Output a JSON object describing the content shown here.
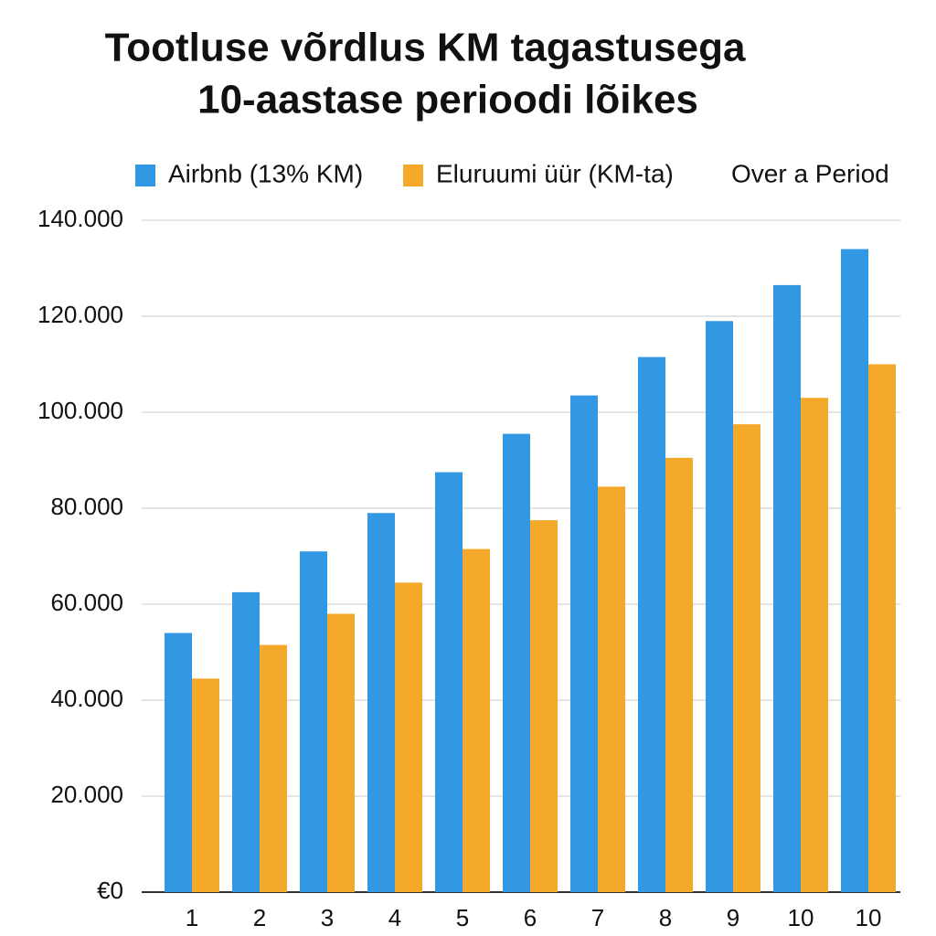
{
  "chart_data": {
    "type": "bar",
    "title": [
      "Tootluse võrdlus KM tagastusega",
      "10-aastase perioodi lõikes"
    ],
    "legend_note": "Over a Period",
    "categories": [
      "1",
      "2",
      "3",
      "4",
      "5",
      "6",
      "7",
      "8",
      "9",
      "10",
      "10"
    ],
    "series": [
      {
        "name": "Airbnb (13% KM)",
        "color": "#3398e4",
        "values": [
          54000,
          62500,
          71000,
          79000,
          87500,
          95500,
          103500,
          111500,
          119000,
          126500,
          134000
        ]
      },
      {
        "name": "Eluruumi üür (KM-ta)",
        "color": "#f4a92a",
        "values": [
          44500,
          51500,
          58000,
          64500,
          71500,
          77500,
          84500,
          90500,
          97500,
          103000,
          110000
        ]
      }
    ],
    "ylim": [
      0,
      140000
    ],
    "yticks": [
      {
        "value": 0,
        "label": "€0"
      },
      {
        "value": 20000,
        "label": "20.000"
      },
      {
        "value": 40000,
        "label": "40.000"
      },
      {
        "value": 60000,
        "label": "60.000"
      },
      {
        "value": 80000,
        "label": "80.000"
      },
      {
        "value": 100000,
        "label": "100.000"
      },
      {
        "value": 120000,
        "label": "120.000"
      },
      {
        "value": 140000,
        "label": "140.000"
      }
    ],
    "grid": true
  }
}
